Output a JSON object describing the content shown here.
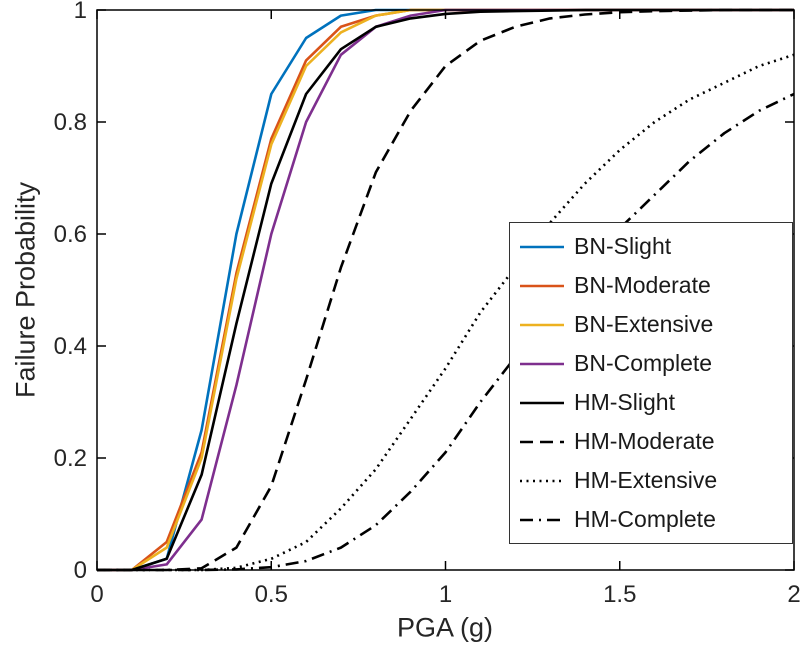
{
  "figure": {
    "background": "#ffffff",
    "axis_color": "#000000",
    "tick_label_color": "#262626",
    "label_color": "#262626"
  },
  "chart_data": {
    "type": "line",
    "title": "",
    "xlabel": "PGA (g)",
    "ylabel": "Failure Probability",
    "xlim": [
      0,
      2
    ],
    "ylim": [
      0,
      1
    ],
    "xticks": [
      0,
      0.5,
      1,
      1.5,
      2
    ],
    "xtick_labels": [
      "0",
      "0.5",
      "1",
      "1.5",
      "2"
    ],
    "yticks": [
      0,
      0.2,
      0.4,
      0.6,
      0.8,
      1
    ],
    "ytick_labels": [
      "0",
      "0.2",
      "0.4",
      "0.6",
      "0.8",
      "1"
    ],
    "grid": false,
    "legend_position": "inside-lower-right",
    "x": [
      0,
      0.1,
      0.2,
      0.3,
      0.4,
      0.5,
      0.6,
      0.7,
      0.8,
      0.9,
      1.0,
      1.1,
      1.2,
      1.3,
      1.4,
      1.5,
      1.6,
      1.7,
      1.8,
      1.9,
      2.0
    ],
    "series": [
      {
        "name": "BN-Slight",
        "color": "#0072BD",
        "dash": "solid",
        "values": [
          0,
          0,
          0.02,
          0.25,
          0.6,
          0.85,
          0.95,
          0.99,
          1,
          1,
          1,
          1,
          1,
          1,
          1,
          1,
          1,
          1,
          1,
          1,
          1
        ]
      },
      {
        "name": "BN-Moderate",
        "color": "#D95319",
        "dash": "solid",
        "values": [
          0,
          0,
          0.05,
          0.21,
          0.53,
          0.77,
          0.91,
          0.97,
          0.99,
          1,
          1,
          1,
          1,
          1,
          1,
          1,
          1,
          1,
          1,
          1,
          1
        ]
      },
      {
        "name": "BN-Extensive",
        "color": "#EDB120",
        "dash": "solid",
        "values": [
          0,
          0,
          0.04,
          0.2,
          0.52,
          0.76,
          0.9,
          0.96,
          0.99,
          1,
          1,
          1,
          1,
          1,
          1,
          1,
          1,
          1,
          1,
          1,
          1
        ]
      },
      {
        "name": "BN-Complete",
        "color": "#7E2F8E",
        "dash": "solid",
        "values": [
          0,
          0,
          0.01,
          0.09,
          0.33,
          0.6,
          0.8,
          0.92,
          0.97,
          0.99,
          1,
          1,
          1,
          1,
          1,
          1,
          1,
          1,
          1,
          1,
          1
        ]
      },
      {
        "name": "HM-Slight",
        "color": "#000000",
        "dash": "solid",
        "values": [
          0,
          0,
          0.02,
          0.17,
          0.44,
          0.69,
          0.85,
          0.93,
          0.97,
          0.985,
          0.993,
          0.997,
          0.998,
          0.999,
          1,
          1,
          1,
          1,
          1,
          1,
          1
        ]
      },
      {
        "name": "HM-Moderate",
        "color": "#000000",
        "dash": "dashed",
        "values": [
          0,
          0,
          0,
          0.003,
          0.04,
          0.15,
          0.34,
          0.54,
          0.71,
          0.82,
          0.9,
          0.945,
          0.97,
          0.985,
          0.992,
          0.996,
          0.998,
          0.999,
          1,
          1,
          1
        ]
      },
      {
        "name": "HM-Extensive",
        "color": "#000000",
        "dash": "dotted",
        "values": [
          0,
          0,
          0,
          0,
          0.004,
          0.02,
          0.05,
          0.11,
          0.18,
          0.27,
          0.36,
          0.46,
          0.54,
          0.62,
          0.69,
          0.75,
          0.8,
          0.84,
          0.87,
          0.9,
          0.92
        ]
      },
      {
        "name": "HM-Complete",
        "color": "#000000",
        "dash": "dashdot",
        "values": [
          0,
          0,
          0,
          0,
          0.001,
          0.005,
          0.016,
          0.04,
          0.08,
          0.14,
          0.21,
          0.3,
          0.38,
          0.46,
          0.54,
          0.61,
          0.67,
          0.73,
          0.78,
          0.82,
          0.85
        ]
      }
    ]
  }
}
